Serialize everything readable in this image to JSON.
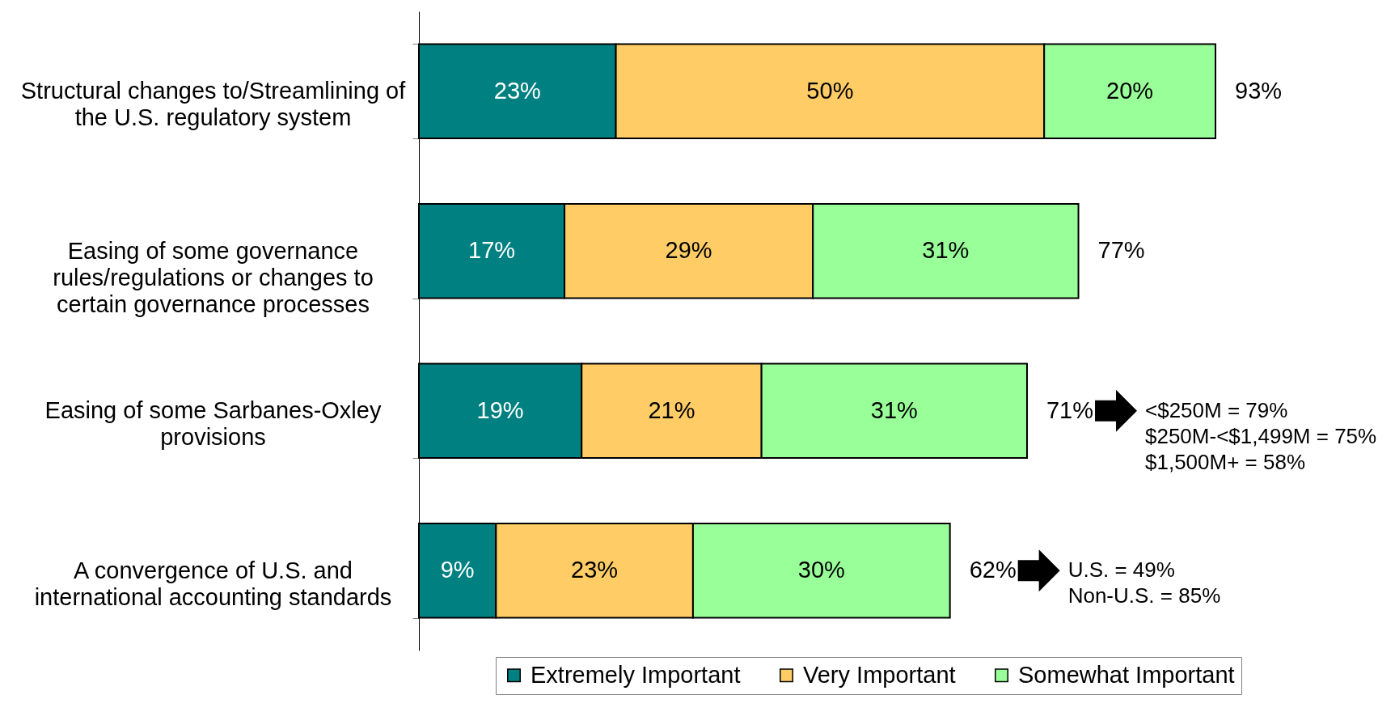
{
  "chart_data": {
    "type": "bar",
    "orientation": "horizontal",
    "stacked": true,
    "categories": [
      "Structural changes to/Streamlining of the U.S. regulatory system",
      "Easing of some governance rules/regulations or changes to certain governance processes",
      "Easing of some Sarbanes-Oxley provisions",
      "A convergence of U.S. and international accounting standards"
    ],
    "series": [
      {
        "name": "Extremely Important",
        "color": "#008080",
        "values": [
          23,
          17,
          19,
          9
        ],
        "value_labels": [
          "23%",
          "17%",
          "19%",
          "9%"
        ]
      },
      {
        "name": "Very Important",
        "color": "#ffcc66",
        "values": [
          50,
          29,
          21,
          23
        ],
        "value_labels": [
          "50%",
          "29%",
          "21%",
          "23%"
        ]
      },
      {
        "name": "Somewhat Important",
        "color": "#99ff99",
        "values": [
          20,
          31,
          31,
          30
        ],
        "value_labels": [
          "20%",
          "31%",
          "31%",
          "30%"
        ]
      }
    ],
    "totals": [
      "93%",
      "77%",
      "71%",
      "62%"
    ],
    "annotations": [
      "<$250M = 79%\n$250M-<$1,499M = 75%\n$1,500M+ = 58%",
      "U.S. = 49%\nNon-U.S. = 85%"
    ],
    "legend": "bottom",
    "tick_labels": "y"
  }
}
